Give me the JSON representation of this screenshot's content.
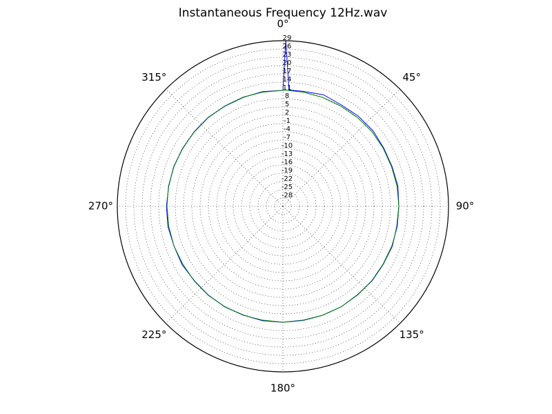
{
  "chart_data": {
    "type": "polar",
    "title": "Instantaneous Frequency  12Hz.wav",
    "x": [
      0,
      1,
      3,
      10,
      20,
      30,
      40,
      50,
      60,
      70,
      80,
      90,
      100,
      110,
      120,
      130,
      140,
      150,
      160,
      170,
      180,
      190,
      200,
      210,
      220,
      230,
      240,
      250,
      260,
      270,
      280,
      290,
      300,
      310,
      320,
      330,
      340,
      350,
      360
    ],
    "series": [
      {
        "color": "#0000ff",
        "values": [
          11,
          29,
          11.2,
          11.3,
          12,
          11.4,
          11.6,
          11.6,
          11.2,
          11.1,
          11.3,
          11,
          10.9,
          11.2,
          11,
          11.1,
          10.9,
          11.1,
          11,
          10.9,
          11,
          11.1,
          10.9,
          11.1,
          11,
          10.9,
          11.2,
          11,
          11.3,
          11.2,
          11,
          11.1,
          10.9,
          11,
          11.1,
          10.9,
          11,
          11.2,
          11
        ]
      },
      {
        "color": "#008000",
        "values": [
          11,
          11,
          11,
          11,
          11,
          10.9,
          11,
          11.1,
          11,
          10.9,
          11,
          11,
          11.1,
          11,
          10.9,
          11,
          11,
          11.1,
          11,
          11,
          11,
          10.9,
          11,
          11,
          11.1,
          11,
          10.9,
          11,
          11,
          11,
          11.1,
          11,
          11,
          10.9,
          11,
          11,
          11.1,
          11,
          11
        ]
      }
    ],
    "rlim": [
      -31,
      29
    ],
    "rticks": [
      -28,
      -25,
      -22,
      -19,
      -16,
      -13,
      -10,
      -7,
      -4,
      -1,
      2,
      5,
      8,
      11,
      14,
      17,
      20,
      23,
      26,
      29
    ],
    "thetaticks": [
      {
        "value": 0,
        "label": "0°"
      },
      {
        "value": 45,
        "label": "45°"
      },
      {
        "value": 90,
        "label": "90°"
      },
      {
        "value": 135,
        "label": "135°"
      },
      {
        "value": 180,
        "label": "180°"
      },
      {
        "value": 225,
        "label": "225°"
      },
      {
        "value": 270,
        "label": "270°"
      },
      {
        "value": 315,
        "label": "315°"
      }
    ],
    "grid": true
  }
}
